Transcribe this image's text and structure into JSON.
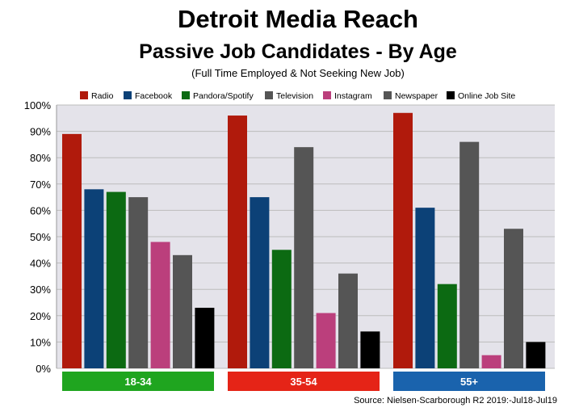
{
  "chart_data": {
    "type": "bar",
    "title": "Detroit Media Reach",
    "subtitle": "Passive Job Candidates - By Age",
    "subtitle2": "(Full Time Employed & Not Seeking New Job)",
    "source": "Source: Nielsen-Scarborough R2 2019:-Jul18-Jul19",
    "categories": [
      "18-34",
      "35-54",
      "55+"
    ],
    "category_colors": [
      "#1fa51f",
      "#e52417",
      "#1a63ad"
    ],
    "ylim": [
      0,
      100
    ],
    "yticks": [
      0,
      10,
      20,
      30,
      40,
      50,
      60,
      70,
      80,
      90,
      100
    ],
    "ytick_labels": [
      "0%",
      "10%",
      "20%",
      "30%",
      "40%",
      "50%",
      "60%",
      "70%",
      "80%",
      "90%",
      "100%"
    ],
    "grid": true,
    "legend_position": "top",
    "plot_background": "#e4e3ea",
    "series": [
      {
        "name": "Radio",
        "color": "#b01a0c",
        "values": [
          89,
          96,
          97
        ]
      },
      {
        "name": "Facebook",
        "color": "#0c4177",
        "values": [
          68,
          65,
          61
        ]
      },
      {
        "name": "Pandora/Spotify",
        "color": "#0c6a12",
        "values": [
          67,
          45,
          32
        ]
      },
      {
        "name": "Television",
        "color": "#555555",
        "values": [
          65,
          84,
          86
        ]
      },
      {
        "name": "Instagram",
        "color": "#bb3f7c",
        "values": [
          48,
          21,
          5
        ]
      },
      {
        "name": "Newspaper",
        "color": "#555555",
        "values": [
          43,
          36,
          53
        ]
      },
      {
        "name": "Online Job Site",
        "color": "#000000",
        "values": [
          23,
          14,
          10
        ]
      }
    ]
  }
}
